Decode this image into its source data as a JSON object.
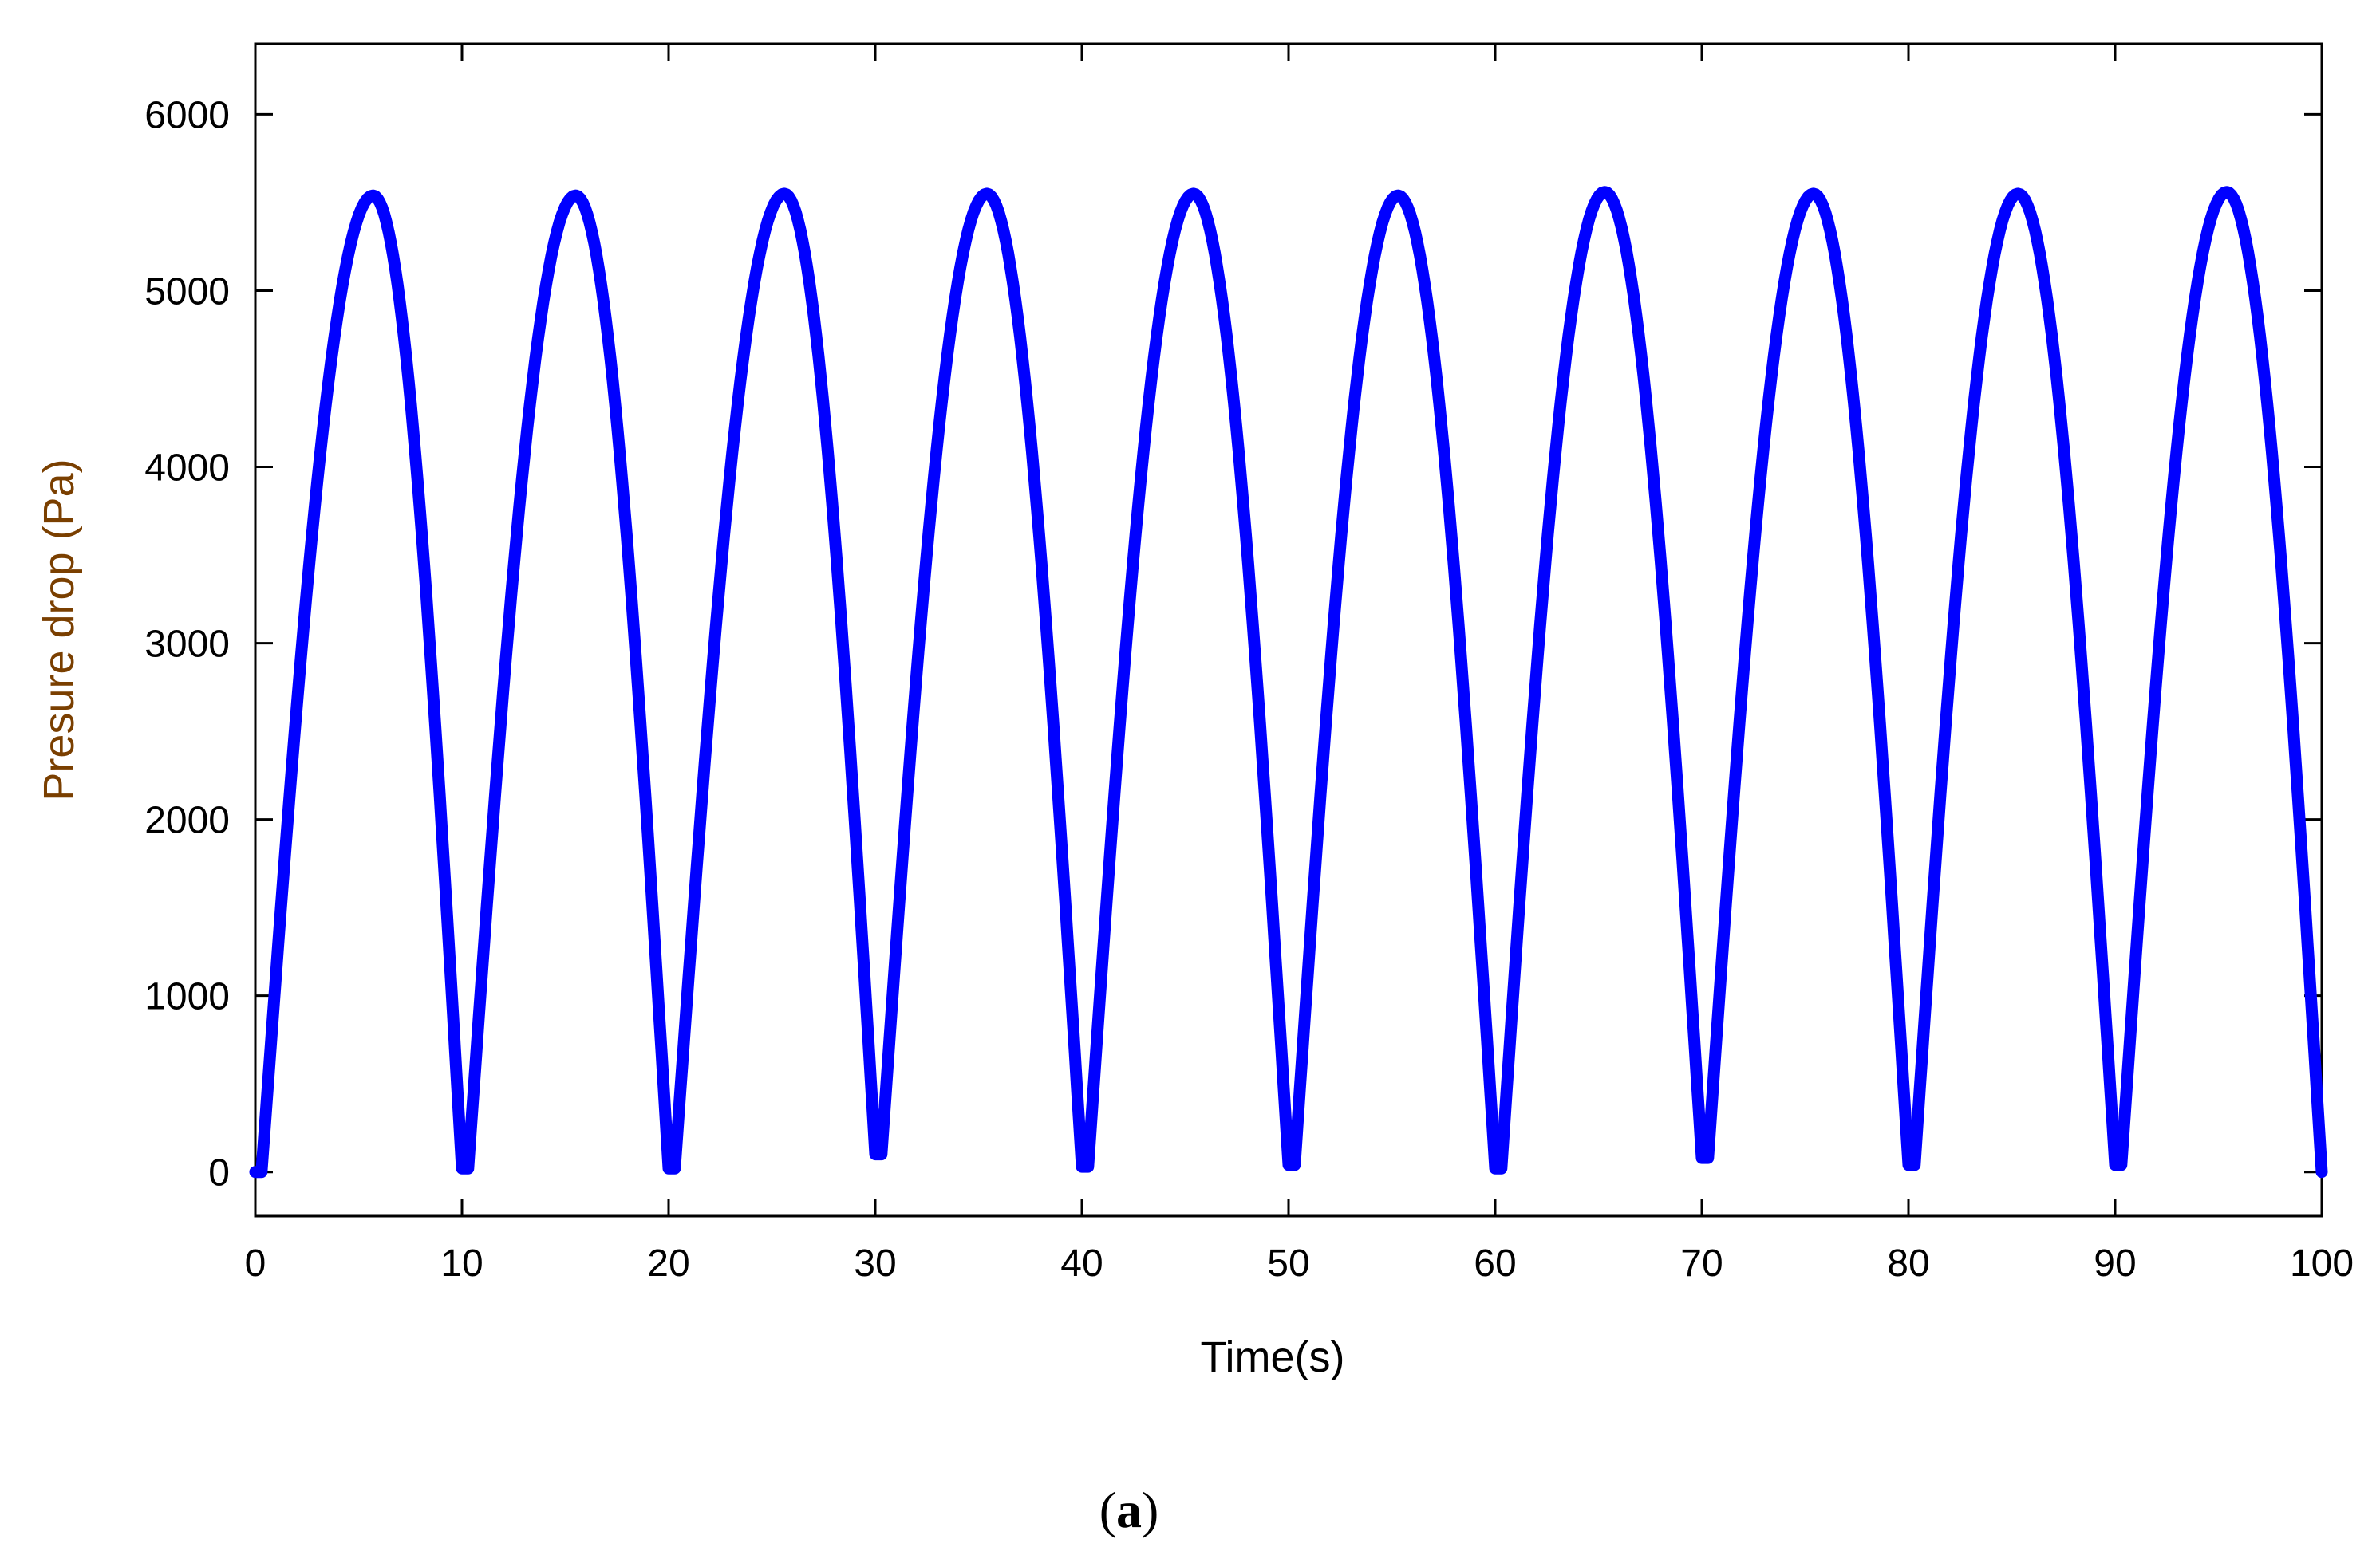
{
  "chart_data": {
    "type": "line",
    "xlabel": "Time(s)",
    "ylabel": "Presure drop (Pa)",
    "xlim": [
      0,
      100
    ],
    "ylim": [
      -250,
      6400
    ],
    "xticks": [
      0,
      10,
      20,
      30,
      40,
      50,
      60,
      70,
      80,
      90,
      100
    ],
    "yticks": [
      0,
      1000,
      2000,
      3000,
      4000,
      5000,
      6000
    ],
    "grid": false,
    "colors": {
      "series": "#0000ff",
      "ylabel": "#7a3f00",
      "xlabel": "#000000"
    },
    "series": [
      {
        "x": [
          0.0,
          0.3,
          5.7,
          10.0,
          10.3,
          15.5,
          20.0,
          20.3,
          25.6,
          30.0,
          30.3,
          35.4,
          40.0,
          40.3,
          45.4,
          50.0,
          50.3,
          55.3,
          60.0,
          60.3,
          65.3,
          70.0,
          70.3,
          75.4,
          80.0,
          80.3,
          85.3,
          90.0,
          90.3,
          95.4,
          100.0
        ],
        "y": [
          0,
          0,
          5540,
          20,
          20,
          5540,
          20,
          20,
          5550,
          100,
          100,
          5550,
          30,
          30,
          5550,
          40,
          40,
          5540,
          20,
          20,
          5560,
          80,
          80,
          5550,
          40,
          40,
          5550,
          40,
          40,
          5560,
          0
        ]
      }
    ]
  },
  "caption": {
    "open": "(",
    "letter": "a",
    "close": ")"
  }
}
